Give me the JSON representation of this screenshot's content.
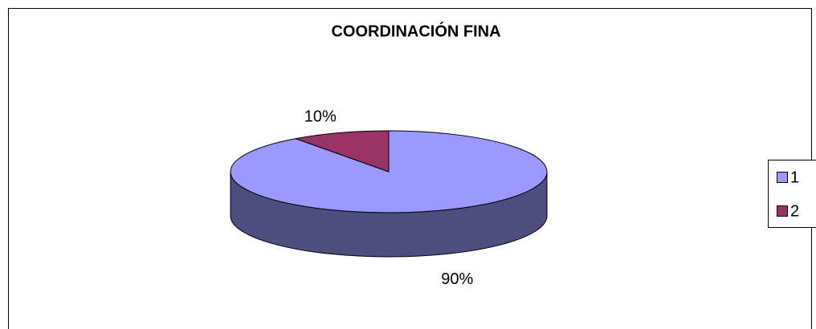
{
  "chart_data": {
    "type": "pie3d",
    "title": "COORDINACIÓN FINA",
    "categories": [
      "1",
      "2"
    ],
    "values": [
      90,
      10
    ],
    "value_labels": [
      "90%",
      "10%"
    ],
    "colors": [
      "#9999ff",
      "#993366"
    ],
    "legend": "right"
  }
}
